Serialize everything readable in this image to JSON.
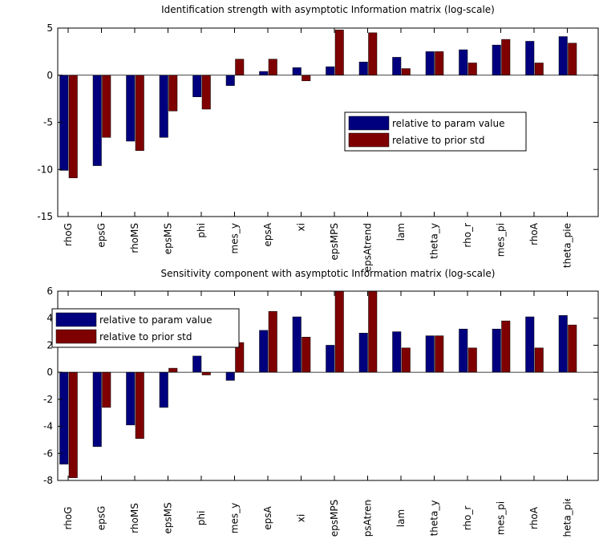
{
  "chart_data": [
    {
      "type": "bar",
      "title": "Identification strength with asymptotic Information matrix (log-scale)",
      "categories": [
        "rhoG",
        "epsG",
        "rhoMS",
        "epsMS",
        "phi",
        "mes_y",
        "epsA",
        "xi",
        "epsMPS",
        "epsAtrend",
        "lam",
        "theta_y",
        "rho_r",
        "mes_pi",
        "rhoA",
        "theta_pie"
      ],
      "series": [
        {
          "name": "relative to param value",
          "color": "#00007f",
          "values": [
            -10.1,
            -9.6,
            -7.0,
            -6.6,
            -2.3,
            -1.1,
            0.4,
            0.8,
            0.9,
            1.4,
            1.9,
            2.5,
            2.7,
            3.2,
            3.6,
            4.1
          ]
        },
        {
          "name": "relative to prior std",
          "color": "#7f0000",
          "values": [
            -10.9,
            -6.6,
            -8.0,
            -3.8,
            -3.6,
            1.7,
            1.7,
            -0.6,
            4.8,
            4.5,
            0.7,
            2.5,
            1.3,
            3.8,
            1.3,
            3.4
          ]
        }
      ],
      "ylim": [
        -15,
        5
      ],
      "yticks": [
        -15,
        -10,
        -5,
        0,
        5
      ],
      "grid": false,
      "legend": "east"
    },
    {
      "type": "bar",
      "title": "Sensitivity component with asymptotic Information matrix (log-scale)",
      "categories": [
        "rhoG",
        "epsG",
        "rhoMS",
        "epsMS",
        "phi",
        "mes_y",
        "epsA",
        "xi",
        "epsMPS",
        "epsAtrend",
        "lam",
        "theta_y",
        "rho_r",
        "mes_pi",
        "rhoA",
        "theta_pie"
      ],
      "series": [
        {
          "name": "relative to param value",
          "color": "#00007f",
          "values": [
            -6.8,
            -5.5,
            -3.9,
            -2.6,
            1.2,
            -0.6,
            3.1,
            4.1,
            2.0,
            2.9,
            3.0,
            2.7,
            3.2,
            3.2,
            4.1,
            4.2
          ]
        },
        {
          "name": "relative to prior std",
          "color": "#7f0000",
          "values": [
            -7.8,
            -2.6,
            -4.9,
            0.3,
            -0.2,
            2.2,
            4.5,
            2.6,
            6.5,
            6.5,
            1.8,
            2.7,
            1.8,
            3.8,
            1.8,
            3.5
          ]
        }
      ],
      "ylim": [
        -8,
        6
      ],
      "yticks": [
        -8,
        -6,
        -4,
        -2,
        0,
        2,
        4,
        6
      ],
      "grid": false,
      "legend": "northwest"
    }
  ]
}
